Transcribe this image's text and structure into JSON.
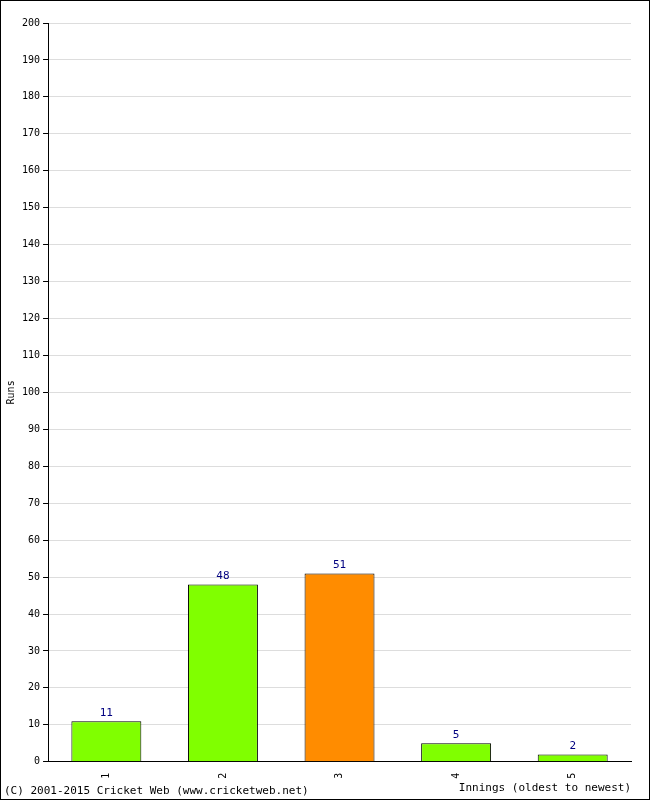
{
  "chart_data": {
    "type": "bar",
    "categories": [
      "1",
      "2",
      "3",
      "4",
      "5"
    ],
    "values": [
      11,
      48,
      51,
      5,
      2
    ],
    "colors": [
      "#80ff00",
      "#80ff00",
      "#ff8c00",
      "#80ff00",
      "#80ff00"
    ],
    "x_label": "Innings (oldest to newest)",
    "y_label": "Runs",
    "annotations": [
      "(C) 2001-2015 Cricket Web (www.cricketweb.net)"
    ],
    "ylim": [
      0,
      200
    ],
    "yticks": [
      0,
      10,
      20,
      30,
      40,
      50,
      60,
      70,
      80,
      90,
      100,
      110,
      120,
      130,
      140,
      150,
      160,
      170,
      180,
      190,
      200
    ],
    "grid": true,
    "data_labels": true
  }
}
